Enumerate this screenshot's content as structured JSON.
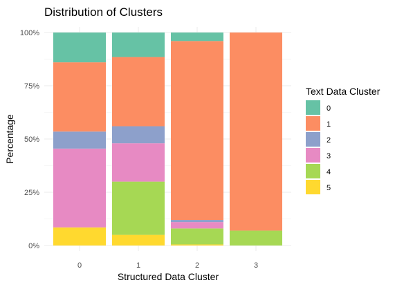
{
  "chart_data": {
    "type": "bar",
    "stacked": "percent",
    "title": "Distribution of Clusters",
    "xlabel": "Structured Data Cluster",
    "ylabel": "Percentage",
    "categories": [
      "0",
      "1",
      "2",
      "3"
    ],
    "y_ticks": [
      "0%",
      "25%",
      "50%",
      "75%",
      "100%"
    ],
    "ylim": [
      0,
      100
    ],
    "grid": true,
    "legend": {
      "title": "Text Data Cluster",
      "placement": "right"
    },
    "series": [
      {
        "name": "5",
        "color": "#FFD92F",
        "values": [
          8.5,
          5,
          0.5,
          0
        ]
      },
      {
        "name": "4",
        "color": "#A6D854",
        "values": [
          0,
          25,
          7.5,
          7
        ]
      },
      {
        "name": "3",
        "color": "#E78AC3",
        "values": [
          37,
          18,
          3,
          0
        ]
      },
      {
        "name": "2",
        "color": "#8DA0CB",
        "values": [
          8,
          8,
          1,
          0
        ]
      },
      {
        "name": "1",
        "color": "#FC8D62",
        "values": [
          32.5,
          32.5,
          84,
          93
        ]
      },
      {
        "name": "0",
        "color": "#66C2A5",
        "values": [
          14,
          11.5,
          4,
          0
        ]
      }
    ],
    "legend_order": [
      "0",
      "1",
      "2",
      "3",
      "4",
      "5"
    ]
  }
}
